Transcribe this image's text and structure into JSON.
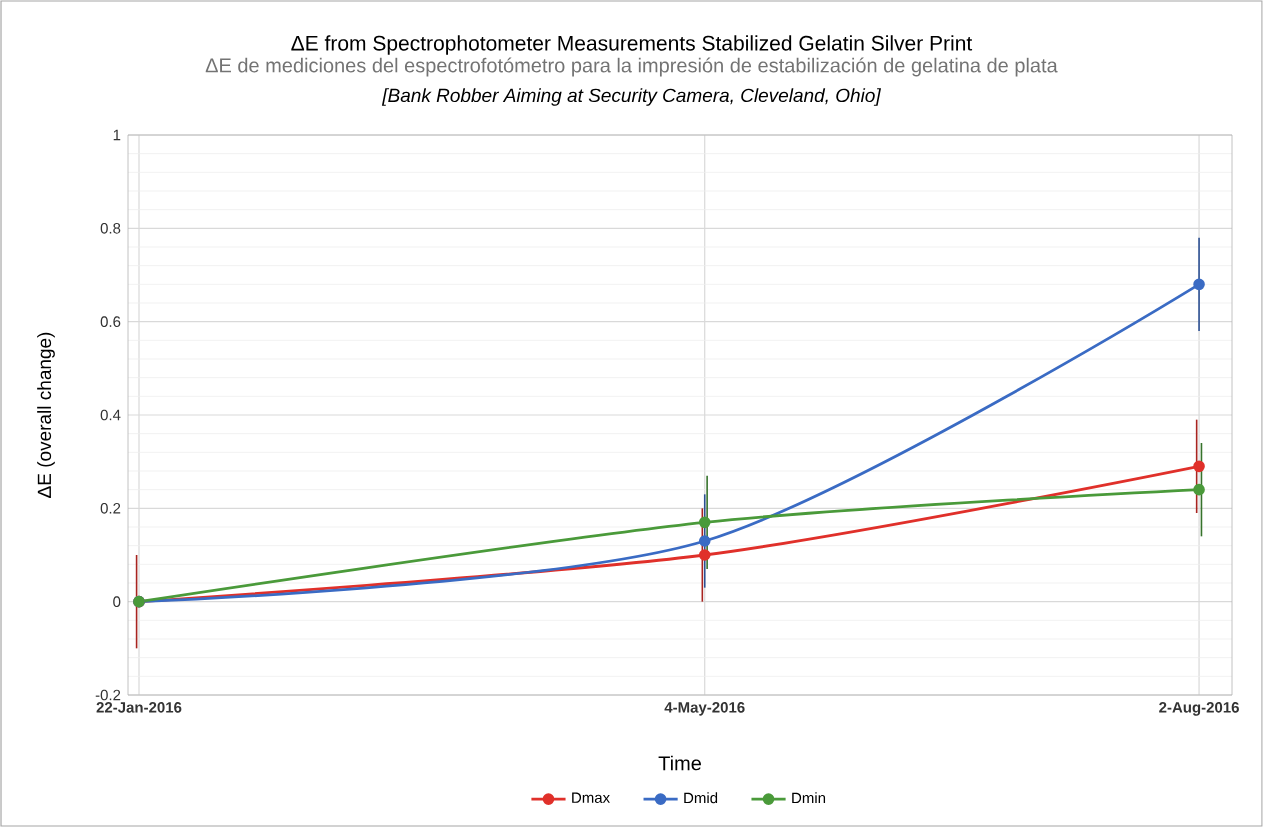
{
  "chart_data": {
    "type": "line",
    "title": "ΔE from Spectrophotometer Measurements Stabilized Gelatin Silver Print",
    "subtitle": "ΔE de mediciones del espectrofotómetro para la impresión de estabilización de gelatina de plata",
    "annotations": [
      "[Bank Robber Aiming at Security Camera, Cleveland, Ohio]"
    ],
    "xlabel": "Time",
    "ylabel": "ΔE (overall change)",
    "x": [
      "2016-01-22",
      "2016-05-04",
      "2016-08-02"
    ],
    "series": [
      {
        "name": "Dmax",
        "color": "#e0302a",
        "values": [
          0,
          0.1,
          0.29
        ],
        "errors": [
          0.1,
          0.1,
          0.1
        ]
      },
      {
        "name": "Dmid",
        "color": "#3a6bc4",
        "values": [
          0,
          0.13,
          0.68
        ],
        "errors": [
          null,
          0.1,
          0.1
        ]
      },
      {
        "name": "Dmin",
        "color": "#4a9a3a",
        "values": [
          0,
          0.17,
          0.24
        ],
        "errors": [
          null,
          0.1,
          0.1
        ]
      }
    ],
    "xlim": [
      "2016-01-20",
      "2016-08-08"
    ],
    "xticks": [
      {
        "value": "2016-01-22",
        "label": "22-Jan-2016"
      },
      {
        "value": "2016-05-04",
        "label": "4-May-2016"
      },
      {
        "value": "2016-08-02",
        "label": "2-Aug-2016"
      }
    ],
    "ylim": [
      -0.2,
      1
    ],
    "yticks": [
      -0.2,
      0,
      0.2,
      0.4,
      0.6,
      0.8,
      1
    ],
    "grid": true,
    "legend": "bottom",
    "marker": "circle",
    "line_style": "solid"
  }
}
